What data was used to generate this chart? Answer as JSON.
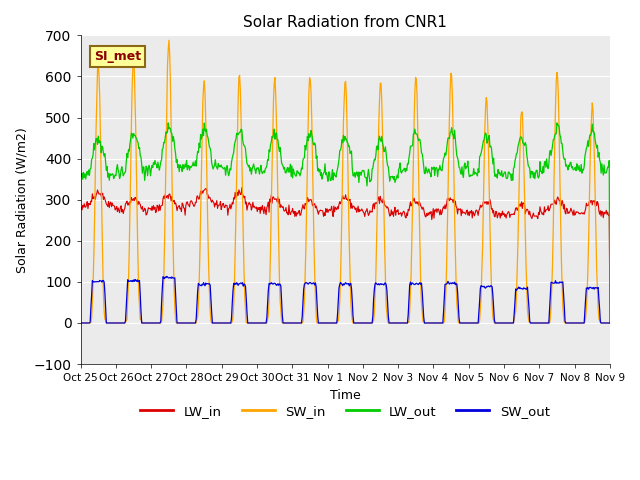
{
  "title": "Solar Radiation from CNR1",
  "xlabel": "Time",
  "ylabel": "Solar Radiation (W/m2)",
  "ylim": [
    -100,
    700
  ],
  "yticks": [
    -100,
    0,
    100,
    200,
    300,
    400,
    500,
    600,
    700
  ],
  "annotation_text": "SI_met",
  "annotation_bg": "#ffff99",
  "annotation_border": "#8b6914",
  "colors": {
    "LW_in": "#dd0000",
    "SW_in": "#ffa500",
    "LW_out": "#00cc00",
    "SW_out": "#0000dd"
  },
  "bg_color": "#ebebeb",
  "n_days": 15,
  "x_tick_labels": [
    "Oct 25",
    "Oct 26",
    "Oct 27",
    "Oct 28",
    "Oct 29",
    "Oct 30",
    "Oct 31",
    "Nov 1",
    "Nov 2",
    "Nov 3",
    "Nov 4",
    "Nov 5",
    "Nov 6",
    "Nov 7",
    "Nov 8",
    "Nov 9"
  ],
  "legend_entries": [
    "LW_in",
    "SW_in",
    "LW_out",
    "SW_out"
  ]
}
